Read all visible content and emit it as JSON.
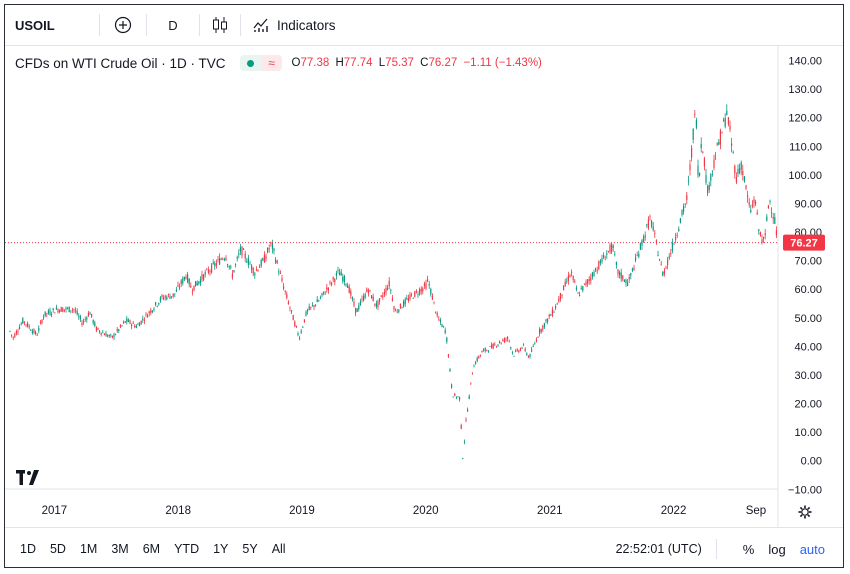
{
  "toolbar": {
    "symbol": "USOIL",
    "interval": "D",
    "indicators_label": "Indicators"
  },
  "legend": {
    "title": "CFDs on WTI Crude Oil · 1D · TVC",
    "wave_glyph": "≈",
    "o_label": "O",
    "o_value": "77.38",
    "h_label": "H",
    "h_value": "77.74",
    "l_label": "L",
    "l_value": "75.37",
    "c_label": "C",
    "c_value": "76.27",
    "change": "−1.11 (−1.43%)"
  },
  "chart_data": {
    "type": "candlestick",
    "symbol": "USOIL",
    "last_price": 76.27,
    "last_price_label": "76.27",
    "ylim": [
      -10,
      140
    ],
    "y_ticks": [
      "−10.00",
      "0.00",
      "10.00",
      "20.00",
      "30.00",
      "40.00",
      "50.00",
      "60.00",
      "70.00",
      "80.00",
      "90.00",
      "100.00",
      "110.00",
      "120.00",
      "130.00",
      "140.00"
    ],
    "x_ticks": [
      "2017",
      "2018",
      "2019",
      "2020",
      "2021",
      "2022",
      "Sep"
    ],
    "xlim": [
      "2016-08-20",
      "2022-11-05"
    ],
    "x_tick_dates": [
      "2017-01-01",
      "2018-01-01",
      "2019-01-01",
      "2020-01-01",
      "2021-01-01",
      "2022-01-01",
      "2022-09-01"
    ],
    "price_path": [
      [
        "2016-08-20",
        46
      ],
      [
        "2016-09-01",
        43
      ],
      [
        "2016-10-01",
        49
      ],
      [
        "2016-11-10",
        44
      ],
      [
        "2016-12-01",
        51
      ],
      [
        "2017-01-10",
        53
      ],
      [
        "2017-03-01",
        53
      ],
      [
        "2017-03-25",
        48
      ],
      [
        "2017-04-15",
        52
      ],
      [
        "2017-05-05",
        46
      ],
      [
        "2017-06-20",
        43
      ],
      [
        "2017-08-01",
        49
      ],
      [
        "2017-09-01",
        47
      ],
      [
        "2017-10-01",
        51
      ],
      [
        "2017-11-15",
        57
      ],
      [
        "2017-12-20",
        58
      ],
      [
        "2018-01-25",
        65
      ],
      [
        "2018-02-10",
        60
      ],
      [
        "2018-03-20",
        65
      ],
      [
        "2018-05-20",
        72
      ],
      [
        "2018-06-10",
        65
      ],
      [
        "2018-07-05",
        74
      ],
      [
        "2018-08-15",
        66
      ],
      [
        "2018-09-10",
        70
      ],
      [
        "2018-10-03",
        76
      ],
      [
        "2018-11-10",
        60
      ],
      [
        "2018-12-24",
        43
      ],
      [
        "2019-01-15",
        52
      ],
      [
        "2019-02-20",
        56
      ],
      [
        "2019-04-20",
        66
      ],
      [
        "2019-05-15",
        62
      ],
      [
        "2019-06-10",
        52
      ],
      [
        "2019-07-15",
        60
      ],
      [
        "2019-08-10",
        54
      ],
      [
        "2019-09-16",
        62
      ],
      [
        "2019-10-03",
        52
      ],
      [
        "2019-11-15",
        57
      ],
      [
        "2019-12-31",
        61
      ],
      [
        "2020-01-08",
        63
      ],
      [
        "2020-02-05",
        50
      ],
      [
        "2020-03-01",
        45
      ],
      [
        "2020-03-20",
        23
      ],
      [
        "2020-04-10",
        22
      ],
      [
        "2020-04-20",
        0
      ],
      [
        "2020-04-27",
        12
      ],
      [
        "2020-05-20",
        33
      ],
      [
        "2020-06-15",
        38
      ],
      [
        "2020-08-01",
        41
      ],
      [
        "2020-09-01",
        43
      ],
      [
        "2020-09-15",
        37
      ],
      [
        "2020-10-15",
        40
      ],
      [
        "2020-11-01",
        36
      ],
      [
        "2020-12-01",
        45
      ],
      [
        "2021-01-15",
        53
      ],
      [
        "2021-03-05",
        66
      ],
      [
        "2021-03-25",
        58
      ],
      [
        "2021-05-01",
        64
      ],
      [
        "2021-06-15",
        72
      ],
      [
        "2021-07-05",
        75
      ],
      [
        "2021-07-20",
        66
      ],
      [
        "2021-08-20",
        62
      ],
      [
        "2021-10-25",
        85
      ],
      [
        "2021-12-01",
        65
      ],
      [
        "2022-01-01",
        76
      ],
      [
        "2022-02-10",
        92
      ],
      [
        "2022-03-08",
        124
      ],
      [
        "2022-03-16",
        95
      ],
      [
        "2022-03-25",
        114
      ],
      [
        "2022-04-11",
        94
      ],
      [
        "2022-05-01",
        105
      ],
      [
        "2022-06-08",
        122
      ],
      [
        "2022-07-05",
        99
      ],
      [
        "2022-07-20",
        104
      ],
      [
        "2022-08-15",
        87
      ],
      [
        "2022-08-30",
        92
      ],
      [
        "2022-09-08",
        81
      ],
      [
        "2022-09-26",
        76
      ],
      [
        "2022-10-10",
        92
      ],
      [
        "2022-10-25",
        85
      ],
      [
        "2022-11-05",
        76.27
      ]
    ],
    "up_color": "#089981",
    "down_color": "#f23645",
    "grid": true
  },
  "time_ranges": [
    "1D",
    "5D",
    "1M",
    "3M",
    "6M",
    "YTD",
    "1Y",
    "5Y",
    "All"
  ],
  "bottom": {
    "clock": "22:52:01 (UTC)",
    "percent_label": "%",
    "log_label": "log",
    "auto_label": "auto"
  },
  "colors": {
    "accent": "#2962ff",
    "up": "#089981",
    "down": "#f23645"
  }
}
